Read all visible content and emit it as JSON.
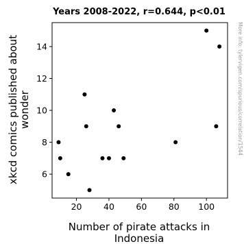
{
  "chart_data": {
    "type": "scatter",
    "title": "Years 2008-2022, r=0.644, p<0.01",
    "xlabel_lines": [
      "Number of pirate attacks in",
      "Indonesia"
    ],
    "ylabel_lines": [
      "xkcd comics published about",
      "wonder"
    ],
    "xlim": [
      5,
      113
    ],
    "ylim": [
      4.5,
      15.5
    ],
    "xticks": [
      20,
      40,
      60,
      80,
      100
    ],
    "yticks": [
      6,
      8,
      10,
      12,
      14
    ],
    "grid": false,
    "legend": "none",
    "marker_color": "#000000",
    "points": [
      {
        "x": 9,
        "y": 8
      },
      {
        "x": 10,
        "y": 7
      },
      {
        "x": 15,
        "y": 6
      },
      {
        "x": 25,
        "y": 11
      },
      {
        "x": 26,
        "y": 9
      },
      {
        "x": 28,
        "y": 5
      },
      {
        "x": 36,
        "y": 7
      },
      {
        "x": 40,
        "y": 7
      },
      {
        "x": 43,
        "y": 10
      },
      {
        "x": 46,
        "y": 9
      },
      {
        "x": 49,
        "y": 7
      },
      {
        "x": 81,
        "y": 8
      },
      {
        "x": 100,
        "y": 15
      },
      {
        "x": 106,
        "y": 9
      },
      {
        "x": 108,
        "y": 14
      }
    ],
    "watermark": "More info: tylervigen.com/spurious/correlation/1544"
  }
}
